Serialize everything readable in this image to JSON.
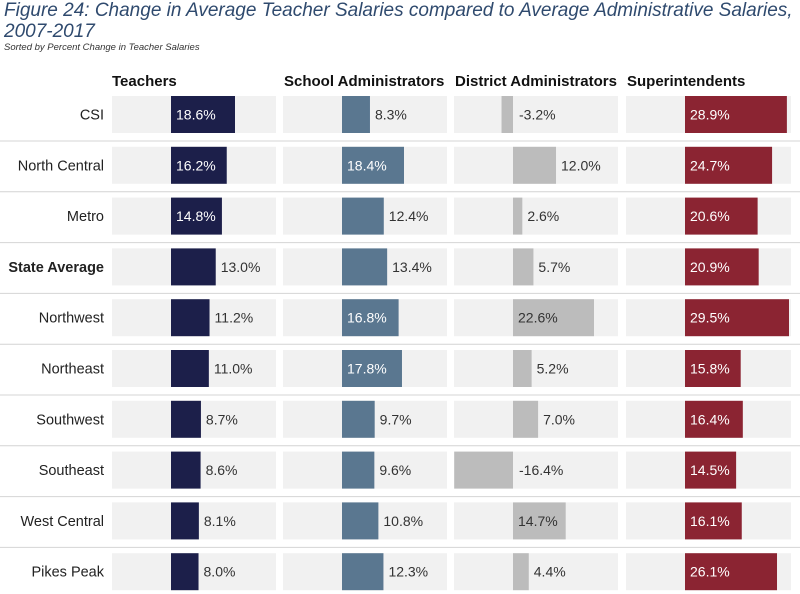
{
  "title": "Figure 24: Change in Average Teacher Salaries compared to Average Administrative Salaries, 2007-2017",
  "subtitle": "Sorted by Percent Change in Teacher Salaries",
  "columns": [
    "Teachers",
    "School Administrators",
    "District Administrators",
    "Superintendents"
  ],
  "colors": {
    "teachers": "#1c1f4a",
    "school_admin": "#5a7790",
    "district_admin": "#bcbcbc",
    "superintendents": "#8b2432",
    "track": "#f1f1f1",
    "label_dark": "#333333",
    "label_light": "#ffffff"
  },
  "chart_data": {
    "type": "bar",
    "title": "Figure 24: Change in Average Teacher Salaries compared to Average Administrative Salaries, 2007-2017",
    "subtitle": "Sorted by Percent Change in Teacher Salaries",
    "categories": [
      "CSI",
      "North Central",
      "Metro",
      "State Average",
      "Northwest",
      "Northeast",
      "Southwest",
      "Southeast",
      "West Central",
      "Pikes Peak"
    ],
    "bold_category": "State Average",
    "series": [
      {
        "name": "Teachers",
        "values": [
          18.6,
          16.2,
          14.8,
          13.0,
          11.2,
          11.0,
          8.7,
          8.6,
          8.1,
          8.0
        ],
        "labels": [
          "18.6%",
          "16.2%",
          "14.8%",
          "13.0%",
          "11.2%",
          "11.0%",
          "8.7%",
          "8.6%",
          "8.1%",
          "8.0%"
        ]
      },
      {
        "name": "School Administrators",
        "values": [
          8.3,
          18.4,
          12.4,
          13.4,
          16.8,
          17.8,
          9.7,
          9.6,
          10.8,
          12.3
        ],
        "labels": [
          "8.3%",
          "18.4%",
          "12.4%",
          "13.4%",
          "16.8%",
          "17.8%",
          "9.7%",
          "9.6%",
          "10.8%",
          "12.3%"
        ]
      },
      {
        "name": "District Administrators",
        "values": [
          -3.2,
          12.0,
          2.6,
          5.7,
          22.6,
          5.2,
          7.0,
          -16.4,
          14.7,
          4.4
        ],
        "labels": [
          "-3.2%",
          "12.0%",
          "2.6%",
          "5.7%",
          "22.6%",
          "5.2%",
          "7.0%",
          "-16.4%",
          "14.7%",
          "4.4%"
        ]
      },
      {
        "name": "Superintendents",
        "values": [
          28.9,
          24.7,
          20.6,
          20.9,
          29.5,
          15.8,
          16.4,
          14.5,
          16.1,
          26.1
        ],
        "labels": [
          "28.9%",
          "24.7%",
          "20.6%",
          "20.9%",
          "29.5%",
          "15.8%",
          "16.4%",
          "14.5%",
          "16.1%",
          "26.1%"
        ]
      }
    ]
  }
}
